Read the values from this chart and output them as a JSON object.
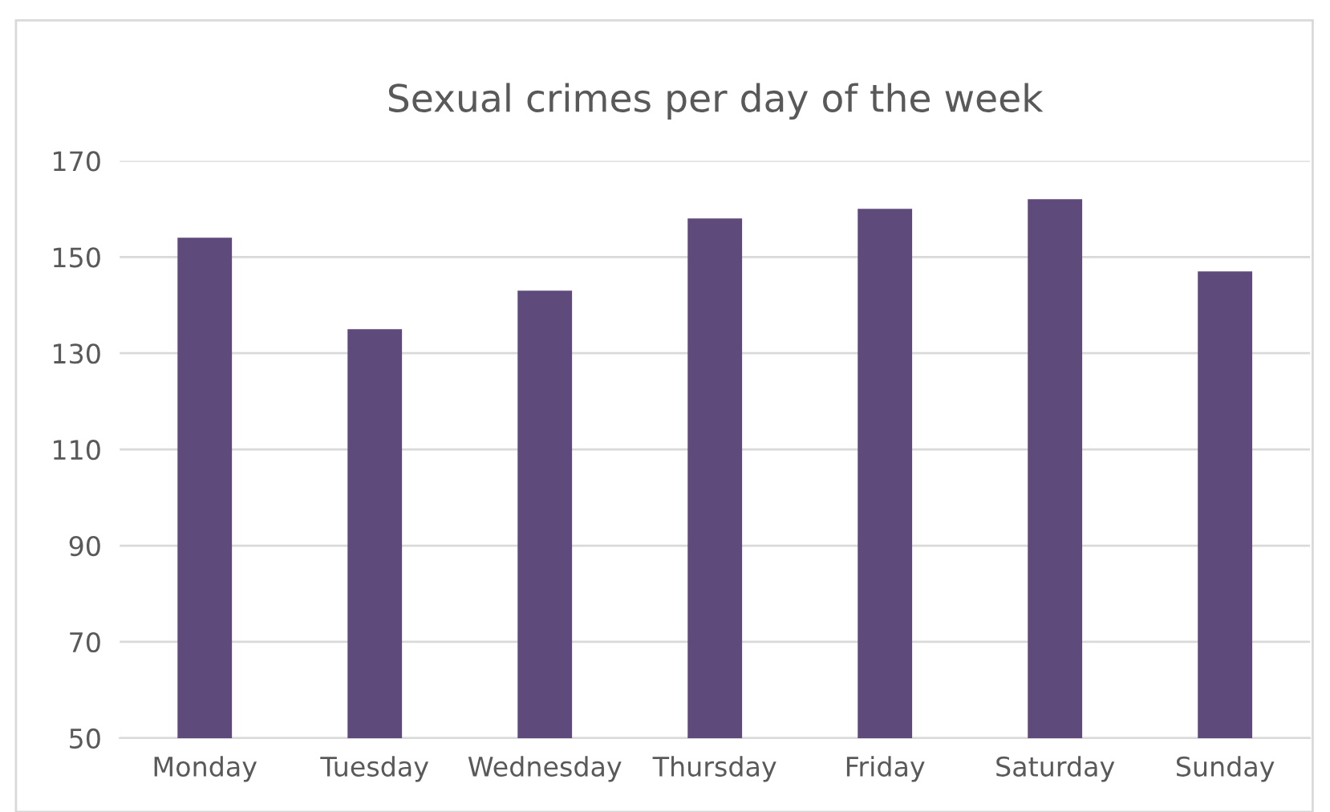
{
  "chart_data": {
    "type": "bar",
    "title": "Sexual crimes per day of the week",
    "categories": [
      "Monday",
      "Tuesday",
      "Wednesday",
      "Thursday",
      "Friday",
      "Saturday",
      "Sunday"
    ],
    "values": [
      154,
      135,
      143,
      158,
      160,
      162,
      147
    ],
    "color": "#5f4b7b",
    "ylim": [
      50,
      170
    ],
    "yticks": [
      50,
      70,
      90,
      110,
      130,
      150,
      170
    ],
    "grid": "y",
    "legend": false
  }
}
